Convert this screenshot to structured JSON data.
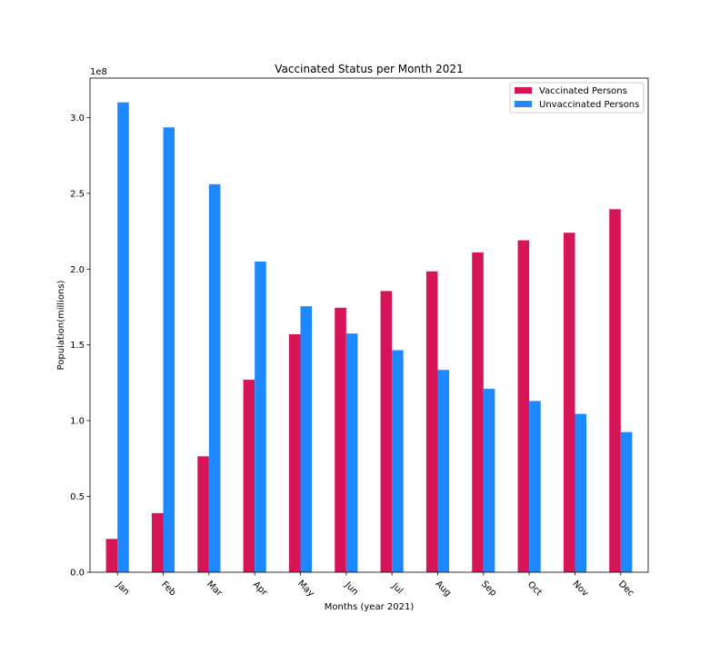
{
  "chart_data": {
    "type": "bar",
    "title": "Vaccinated Status per Month 2021",
    "xlabel": "Months (year 2021)",
    "ylabel": "Population(millions)",
    "y_scale_label": "1e8",
    "categories": [
      "Jan",
      "Feb",
      "Mar",
      "Apr",
      "May",
      "Jun",
      "Jul",
      "Aug",
      "Sep",
      "Oct",
      "Nov",
      "Dec"
    ],
    "series": [
      {
        "name": "Vaccinated Persons",
        "color": "#d61559",
        "values": [
          0.22,
          0.39,
          0.765,
          1.27,
          1.57,
          1.745,
          1.855,
          1.985,
          2.11,
          2.19,
          2.24,
          2.395
        ]
      },
      {
        "name": "Unvaccinated Persons",
        "color": "#1e88ff",
        "values": [
          3.1,
          2.935,
          2.56,
          2.05,
          1.755,
          1.575,
          1.465,
          1.335,
          1.21,
          1.13,
          1.045,
          0.925
        ]
      }
    ],
    "yticks": [
      "0.0",
      "0.5",
      "1.0",
      "1.5",
      "2.0",
      "2.5",
      "3.0"
    ],
    "ylim": [
      0,
      3.26
    ],
    "grid": false,
    "legend_position": "top-right"
  }
}
